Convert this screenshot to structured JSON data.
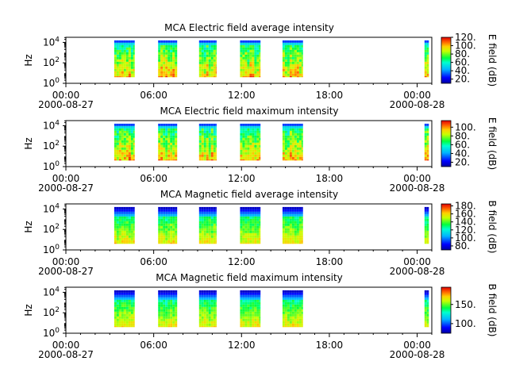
{
  "figure": {
    "x_tick_labels": [
      "00:00",
      "06:00",
      "12:00",
      "18:00",
      "00:00"
    ],
    "x_date_labels": [
      "2000-08-27",
      "",
      "",
      "",
      "2000-08-28"
    ]
  },
  "chart_data": [
    {
      "type": "heatmap",
      "title": "MCA  Electric field average intensity",
      "ylabel": "Hz",
      "y_tick_labels": [
        "10^0",
        "10^2",
        "10^4"
      ],
      "colorbar_label": "E field (dB)",
      "colorbar_ticks": [
        20,
        40,
        60,
        80,
        100,
        120
      ],
      "colorbar_tick_labels": [
        "20.",
        "40.",
        "60.",
        "80.",
        "100.",
        "120."
      ],
      "colorbar_range": [
        10,
        120
      ],
      "xlim": [
        "2000-08-27T00:00",
        "2000-08-28T01:00"
      ],
      "ylim_log10": [
        0,
        4.5
      ],
      "segments_hours": [
        [
          3.3,
          4.7
        ],
        [
          6.3,
          7.6
        ],
        [
          9.1,
          10.3
        ],
        [
          11.9,
          13.3
        ],
        [
          14.8,
          16.2
        ],
        [
          24.5,
          24.8
        ]
      ],
      "freq_top_log10": 4.2,
      "freq_bottom_log10": 0.6
    },
    {
      "type": "heatmap",
      "title": "MCA  Electric field maximum intensity",
      "ylabel": "Hz",
      "y_tick_labels": [
        "10^0",
        "10^2",
        "10^4"
      ],
      "colorbar_label": "E field (dB)",
      "colorbar_ticks": [
        20,
        40,
        60,
        80,
        100
      ],
      "colorbar_tick_labels": [
        "20.",
        "40.",
        "60.",
        "80.",
        "100."
      ],
      "colorbar_range": [
        10,
        115
      ],
      "xlim": [
        "2000-08-27T00:00",
        "2000-08-28T01:00"
      ],
      "ylim_log10": [
        0,
        4.5
      ],
      "segments_hours": [
        [
          3.3,
          4.7
        ],
        [
          6.3,
          7.6
        ],
        [
          9.1,
          10.3
        ],
        [
          11.9,
          13.3
        ],
        [
          14.8,
          16.2
        ],
        [
          24.5,
          24.8
        ]
      ],
      "freq_top_log10": 4.2,
      "freq_bottom_log10": 0.6
    },
    {
      "type": "heatmap",
      "title": "MCA  Magnetic field average intensity",
      "ylabel": "Hz",
      "y_tick_labels": [
        "10^0",
        "10^2",
        "10^4"
      ],
      "colorbar_label": "B field (dB)",
      "colorbar_ticks": [
        80,
        100,
        120,
        140,
        160,
        180
      ],
      "colorbar_tick_labels": [
        "80.",
        "100.",
        "120.",
        "140.",
        "160.",
        "180."
      ],
      "colorbar_range": [
        70,
        185
      ],
      "xlim": [
        "2000-08-27T00:00",
        "2000-08-28T01:00"
      ],
      "ylim_log10": [
        0,
        4.5
      ],
      "segments_hours": [
        [
          3.3,
          4.7
        ],
        [
          6.3,
          7.6
        ],
        [
          9.1,
          10.3
        ],
        [
          11.9,
          13.3
        ],
        [
          14.8,
          16.2
        ],
        [
          24.5,
          24.8
        ]
      ],
      "freq_top_log10": 4.2,
      "freq_bottom_log10": 0.6
    },
    {
      "type": "heatmap",
      "title": "MCA  Magnetic field maximum intensity",
      "ylabel": "Hz",
      "y_tick_labels": [
        "10^0",
        "10^2",
        "10^4"
      ],
      "colorbar_label": "B field (dB)",
      "colorbar_ticks": [
        100,
        150
      ],
      "colorbar_tick_labels": [
        "100.",
        "150."
      ],
      "colorbar_range": [
        75,
        195
      ],
      "xlim": [
        "2000-08-27T00:00",
        "2000-08-28T01:00"
      ],
      "ylim_log10": [
        0,
        4.5
      ],
      "segments_hours": [
        [
          3.3,
          4.7
        ],
        [
          6.3,
          7.6
        ],
        [
          9.1,
          10.3
        ],
        [
          11.9,
          13.3
        ],
        [
          14.8,
          16.2
        ],
        [
          24.5,
          24.8
        ]
      ],
      "freq_top_log10": 4.2,
      "freq_bottom_log10": 0.6
    }
  ]
}
